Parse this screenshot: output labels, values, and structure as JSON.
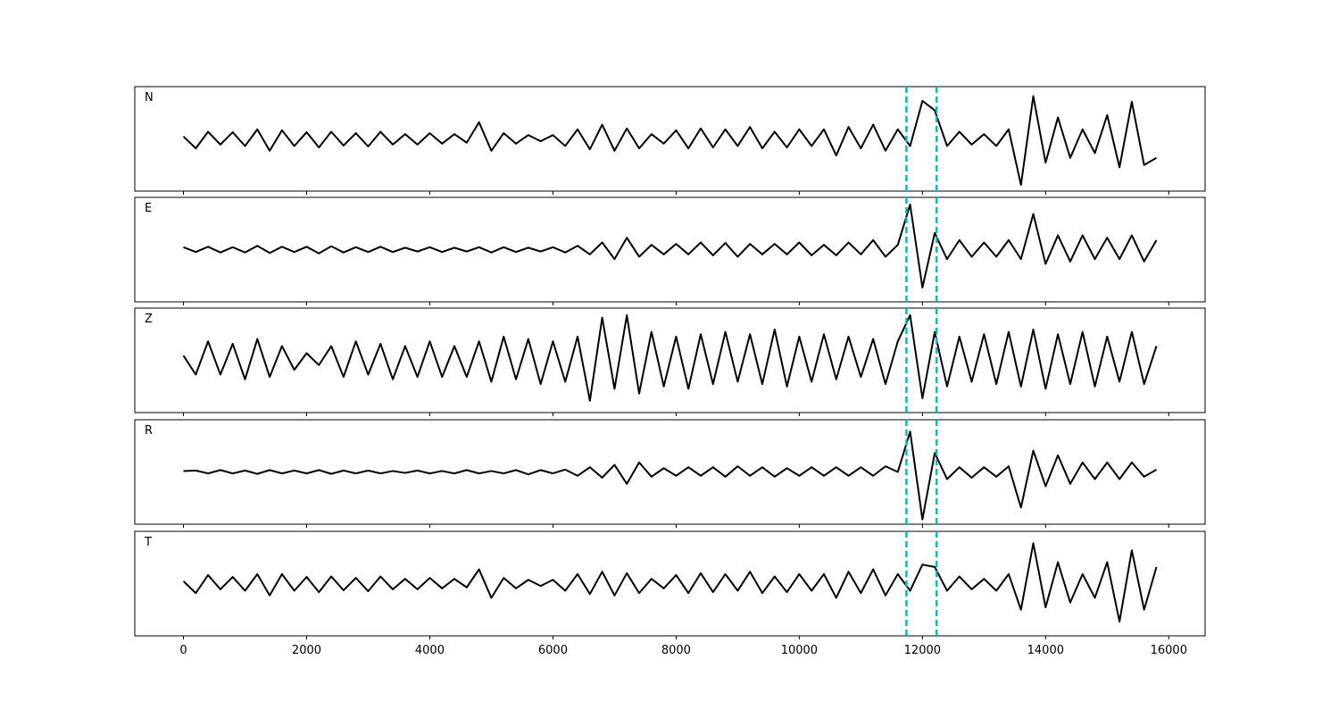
{
  "chart_data": {
    "type": "line",
    "x": [
      0,
      200,
      400,
      600,
      800,
      1000,
      1200,
      1400,
      1600,
      1800,
      2000,
      2200,
      2400,
      2600,
      2800,
      3000,
      3200,
      3400,
      3600,
      3800,
      4000,
      4200,
      4400,
      4600,
      4800,
      5000,
      5200,
      5400,
      5600,
      5800,
      6000,
      6200,
      6400,
      6600,
      6800,
      7000,
      7200,
      7400,
      7600,
      7800,
      8000,
      8200,
      8400,
      8600,
      8800,
      9000,
      9200,
      9400,
      9600,
      9800,
      10000,
      10200,
      10400,
      10600,
      10800,
      11000,
      11200,
      11400,
      11600,
      11800,
      12000,
      12200,
      12400,
      12600,
      12800,
      13000,
      13200,
      13400,
      13600,
      13800,
      14000,
      14200,
      14400,
      14600,
      14800,
      15000,
      15200,
      15400,
      15600,
      15800
    ],
    "series": [
      {
        "name": "N",
        "color": "#000000",
        "values": [
          0.05,
          -0.2,
          0.15,
          -0.12,
          0.14,
          -0.15,
          0.2,
          -0.25,
          0.18,
          -0.15,
          0.14,
          -0.18,
          0.15,
          -0.14,
          0.12,
          -0.16,
          0.15,
          -0.12,
          0.1,
          -0.12,
          0.12,
          -0.1,
          0.1,
          -0.08,
          0.35,
          -0.25,
          0.12,
          -0.1,
          0.08,
          -0.05,
          0.08,
          -0.15,
          0.2,
          -0.22,
          0.3,
          -0.25,
          0.22,
          -0.2,
          0.1,
          -0.1,
          0.18,
          -0.2,
          0.22,
          -0.18,
          0.2,
          -0.15,
          0.25,
          -0.2,
          0.15,
          -0.18,
          0.2,
          -0.15,
          0.2,
          -0.35,
          0.25,
          -0.2,
          0.3,
          -0.25,
          0.2,
          -0.15,
          0.8,
          0.6,
          -0.15,
          0.15,
          -0.12,
          0.1,
          -0.15,
          0.2,
          -0.97,
          0.9,
          -0.5,
          0.45,
          -0.4,
          0.2,
          -0.3,
          0.5,
          -0.6,
          0.78,
          -0.55,
          -0.4
        ]
      },
      {
        "name": "E",
        "color": "#000000",
        "values": [
          0.05,
          -0.05,
          0.06,
          -0.06,
          0.05,
          -0.06,
          0.08,
          -0.07,
          0.06,
          -0.05,
          0.06,
          -0.08,
          0.07,
          -0.06,
          0.05,
          -0.05,
          0.06,
          -0.05,
          0.04,
          -0.04,
          0.05,
          -0.05,
          0.04,
          -0.04,
          0.05,
          -0.06,
          0.05,
          -0.05,
          0.04,
          -0.04,
          0.05,
          -0.06,
          0.08,
          -0.1,
          0.15,
          -0.2,
          0.25,
          -0.15,
          0.1,
          -0.1,
          0.12,
          -0.1,
          0.15,
          -0.12,
          0.14,
          -0.15,
          0.12,
          -0.1,
          0.12,
          -0.1,
          0.15,
          -0.12,
          0.1,
          -0.12,
          0.15,
          -0.1,
          0.2,
          -0.15,
          0.1,
          0.95,
          -0.8,
          0.35,
          -0.2,
          0.2,
          -0.15,
          0.15,
          -0.15,
          0.2,
          -0.2,
          0.75,
          -0.3,
          0.3,
          -0.25,
          0.3,
          -0.2,
          0.25,
          -0.2,
          0.3,
          -0.25,
          0.2
        ]
      },
      {
        "name": "Z",
        "color": "#000000",
        "values": [
          0.1,
          -0.3,
          0.4,
          -0.3,
          0.35,
          -0.4,
          0.45,
          -0.35,
          0.3,
          -0.2,
          0.15,
          -0.1,
          0.3,
          -0.35,
          0.4,
          -0.3,
          0.35,
          -0.4,
          0.3,
          -0.35,
          0.4,
          -0.35,
          0.3,
          -0.35,
          0.4,
          -0.45,
          0.5,
          -0.4,
          0.45,
          -0.5,
          0.4,
          -0.45,
          0.5,
          -0.85,
          0.9,
          -0.6,
          0.95,
          -0.7,
          0.6,
          -0.55,
          0.5,
          -0.6,
          0.55,
          -0.5,
          0.6,
          -0.45,
          0.55,
          -0.5,
          0.65,
          -0.55,
          0.5,
          -0.45,
          0.55,
          -0.4,
          0.5,
          -0.35,
          0.45,
          -0.5,
          0.4,
          0.95,
          -0.8,
          0.6,
          -0.55,
          0.5,
          -0.45,
          0.55,
          -0.5,
          0.6,
          -0.55,
          0.65,
          -0.6,
          0.55,
          -0.5,
          0.6,
          -0.55,
          0.5,
          -0.45,
          0.6,
          -0.5,
          0.3
        ]
      },
      {
        "name": "R",
        "color": "#000000",
        "values": [
          0.02,
          0.03,
          -0.03,
          0.04,
          -0.03,
          0.03,
          -0.04,
          0.04,
          -0.03,
          0.03,
          -0.03,
          0.04,
          -0.04,
          0.03,
          -0.03,
          0.03,
          -0.03,
          0.02,
          -0.02,
          0.03,
          -0.03,
          0.02,
          -0.03,
          0.04,
          -0.03,
          0.02,
          -0.03,
          0.04,
          -0.05,
          0.04,
          -0.03,
          0.05,
          -0.08,
          0.1,
          -0.12,
          0.15,
          -0.25,
          0.2,
          -0.1,
          0.08,
          -0.08,
          0.1,
          -0.08,
          0.1,
          -0.1,
          0.12,
          -0.08,
          0.1,
          -0.1,
          0.08,
          -0.08,
          0.1,
          -0.08,
          0.1,
          -0.08,
          0.1,
          -0.08,
          0.12,
          0.0,
          0.85,
          -1.0,
          0.4,
          -0.15,
          0.1,
          -0.12,
          0.1,
          -0.1,
          0.12,
          -0.75,
          0.45,
          -0.3,
          0.35,
          -0.25,
          0.2,
          -0.15,
          0.2,
          -0.15,
          0.2,
          -0.1,
          0.05
        ]
      },
      {
        "name": "T",
        "color": "#000000",
        "values": [
          0.05,
          -0.2,
          0.18,
          -0.12,
          0.14,
          -0.15,
          0.2,
          -0.25,
          0.2,
          -0.15,
          0.14,
          -0.18,
          0.15,
          -0.14,
          0.12,
          -0.16,
          0.15,
          -0.12,
          0.1,
          -0.12,
          0.12,
          -0.1,
          0.1,
          -0.08,
          0.3,
          -0.3,
          0.12,
          -0.1,
          0.08,
          -0.05,
          0.08,
          -0.15,
          0.2,
          -0.22,
          0.25,
          -0.25,
          0.22,
          -0.2,
          0.1,
          -0.1,
          0.18,
          -0.2,
          0.22,
          -0.18,
          0.2,
          -0.15,
          0.25,
          -0.2,
          0.15,
          -0.18,
          0.2,
          -0.15,
          0.2,
          -0.3,
          0.25,
          -0.2,
          0.3,
          -0.25,
          0.2,
          -0.15,
          0.4,
          0.35,
          -0.15,
          0.15,
          -0.12,
          0.1,
          -0.15,
          0.2,
          -0.55,
          0.85,
          -0.5,
          0.45,
          -0.4,
          0.2,
          -0.3,
          0.45,
          -0.8,
          0.7,
          -0.55,
          0.35
        ]
      }
    ],
    "xlim": [
      -790,
      16590
    ],
    "xticks": [
      0,
      2000,
      4000,
      6000,
      8000,
      10000,
      12000,
      14000,
      16000
    ],
    "ylim": [
      -1.1,
      1.1
    ],
    "vlines": [
      11740,
      12230
    ],
    "vline_color": "#00bfbf"
  }
}
